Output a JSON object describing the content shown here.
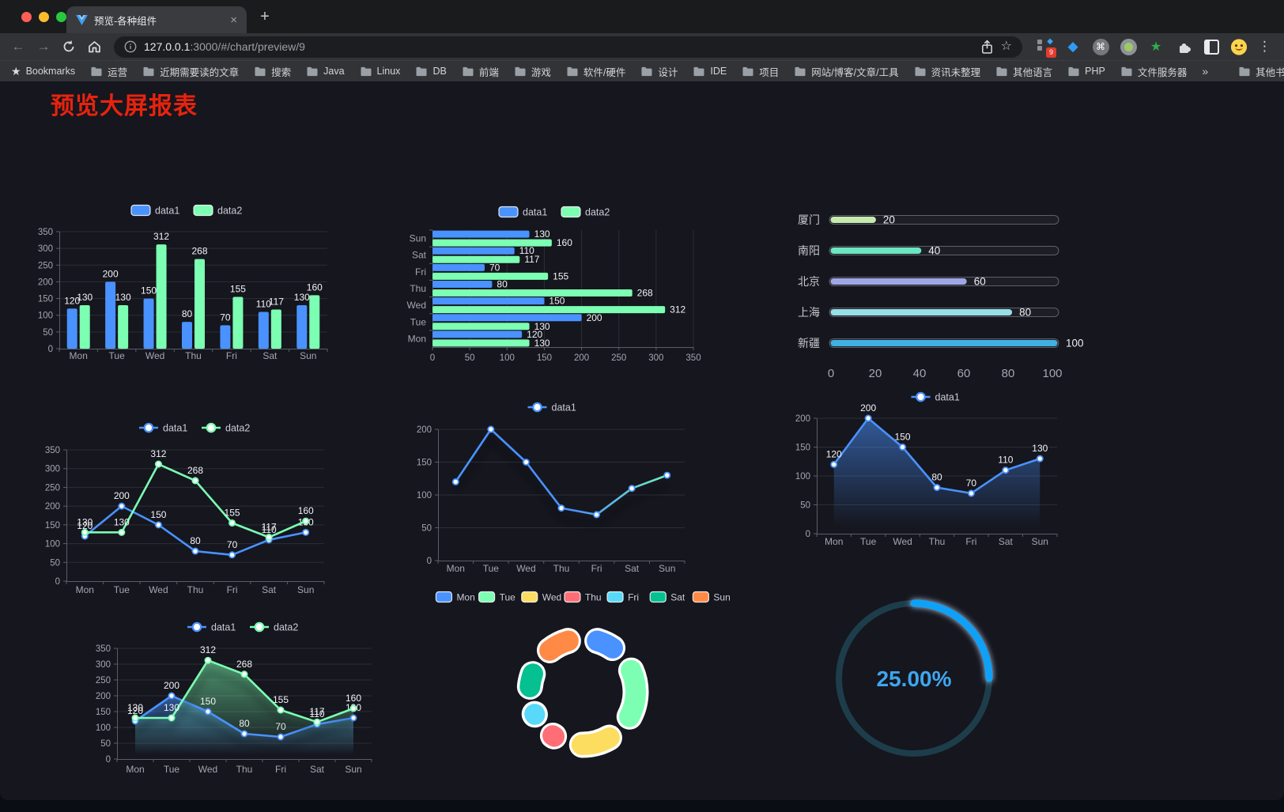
{
  "browser": {
    "tab_title": "预览-各种组件",
    "tab_close_glyph": "×",
    "new_tab_glyph": "+",
    "url": {
      "host": "127.0.0.1",
      "rest": ":3000/#/chart/preview/9"
    },
    "icons": {
      "back": "←",
      "forward": "→",
      "menu": "⋮",
      "overflow": "»",
      "star_outline": "☆",
      "bookmarks_star": "★",
      "gem": "◆",
      "command": "⌘",
      "green_star": "★"
    },
    "extension_badge": "9",
    "bookmarks_label": "Bookmarks",
    "bookmarks": [
      "运营",
      "近期需要读的文章",
      "搜索",
      "Java",
      "Linux",
      "DB",
      "前端",
      "游戏",
      "软件/硬件",
      "设计",
      "IDE",
      "项目",
      "网站/博客/文章/工具",
      "资讯未整理",
      "其他语言",
      "PHP",
      "文件服务器"
    ],
    "other_bookmarks": "其他书签"
  },
  "page": {
    "title": "预览大屏报表"
  },
  "chart_data": [
    {
      "id": "bar-vertical",
      "type": "bar",
      "title": "",
      "categories": [
        "Mon",
        "Tue",
        "Wed",
        "Thu",
        "Fri",
        "Sat",
        "Sun"
      ],
      "series": [
        {
          "name": "data1",
          "color": "#4992ff",
          "values": [
            120,
            200,
            150,
            80,
            70,
            110,
            130
          ]
        },
        {
          "name": "data2",
          "color": "#7cffb2",
          "values": [
            130,
            130,
            312,
            268,
            155,
            117,
            160
          ]
        }
      ],
      "ylim": [
        0,
        350
      ],
      "legend_position": "top",
      "grid": true,
      "value_labels": true
    },
    {
      "id": "bar-horizontal",
      "type": "bar",
      "orientation": "horizontal",
      "categories": [
        "Mon",
        "Tue",
        "Wed",
        "Thu",
        "Fri",
        "Sat",
        "Sun"
      ],
      "category_display_order": "Sun at top, Mon at bottom",
      "series": [
        {
          "name": "data1",
          "color": "#4992ff",
          "values": [
            120,
            200,
            150,
            80,
            70,
            110,
            130
          ]
        },
        {
          "name": "data2",
          "color": "#7cffb2",
          "values": [
            130,
            130,
            312,
            268,
            155,
            117,
            160
          ]
        }
      ],
      "xlim": [
        0,
        350
      ],
      "legend_position": "top",
      "grid": true,
      "value_labels": true
    },
    {
      "id": "city-progress",
      "type": "bar",
      "subtype": "progress",
      "categories": [
        "厦门",
        "南阳",
        "北京",
        "上海",
        "新疆"
      ],
      "values": [
        20,
        40,
        60,
        80,
        100
      ],
      "colors": [
        "#c4ebad",
        "#6be6c1",
        "#a0a7e6",
        "#96dee8",
        "#3fb1e3"
      ],
      "xlim": [
        0,
        100
      ],
      "xticks": [
        0,
        20,
        40,
        60,
        80,
        100
      ],
      "value_labels": true
    },
    {
      "id": "line-multi",
      "type": "line",
      "categories": [
        "Mon",
        "Tue",
        "Wed",
        "Thu",
        "Fri",
        "Sat",
        "Sun"
      ],
      "series": [
        {
          "name": "data1",
          "color": "#4992ff",
          "values": [
            120,
            200,
            150,
            80,
            70,
            110,
            130
          ]
        },
        {
          "name": "data2",
          "color": "#7cffb2",
          "values": [
            130,
            130,
            312,
            268,
            155,
            117,
            160
          ]
        }
      ],
      "ylim": [
        0,
        350
      ],
      "legend_position": "top",
      "grid": true,
      "value_labels": true
    },
    {
      "id": "line-gradient",
      "type": "line",
      "categories": [
        "Mon",
        "Tue",
        "Wed",
        "Thu",
        "Fri",
        "Sat",
        "Sun"
      ],
      "series": [
        {
          "name": "data1",
          "color": "#4992ff",
          "color_end": "#7cffb2",
          "values": [
            120,
            200,
            150,
            80,
            70,
            110,
            130
          ]
        }
      ],
      "ylim": [
        0,
        200
      ],
      "legend_position": "top",
      "grid": true,
      "value_labels": false,
      "shadow": true
    },
    {
      "id": "area-single",
      "type": "area",
      "categories": [
        "Mon",
        "Tue",
        "Wed",
        "Thu",
        "Fri",
        "Sat",
        "Sun"
      ],
      "series": [
        {
          "name": "data1",
          "color": "#4992ff",
          "values": [
            120,
            200,
            150,
            80,
            70,
            110,
            130
          ]
        }
      ],
      "ylim": [
        0,
        200
      ],
      "legend_position": "top",
      "grid": true,
      "value_labels": true
    },
    {
      "id": "area-multi",
      "type": "area",
      "categories": [
        "Mon",
        "Tue",
        "Wed",
        "Thu",
        "Fri",
        "Sat",
        "Sun"
      ],
      "series": [
        {
          "name": "data1",
          "color": "#4992ff",
          "values": [
            120,
            200,
            150,
            80,
            70,
            110,
            130
          ]
        },
        {
          "name": "data2",
          "color": "#7cffb2",
          "values": [
            130,
            130,
            312,
            268,
            155,
            117,
            160
          ]
        }
      ],
      "ylim": [
        0,
        350
      ],
      "legend_position": "top",
      "grid": true,
      "value_labels": true,
      "shadow": true
    },
    {
      "id": "donut",
      "type": "pie",
      "categories": [
        "Mon",
        "Tue",
        "Wed",
        "Thu",
        "Fri",
        "Sat",
        "Sun"
      ],
      "values": [
        120,
        200,
        150,
        80,
        70,
        110,
        130
      ],
      "colors": [
        "#4992ff",
        "#7cffb2",
        "#fddd60",
        "#ff6e76",
        "#58d9f9",
        "#05c091",
        "#ff8a45"
      ],
      "legend_position": "top",
      "inner_radius": true,
      "border_color": "#ffffff"
    },
    {
      "id": "gauge",
      "type": "gauge",
      "value": 25,
      "max": 100,
      "label": "25.00%",
      "color": "#0aa1f7",
      "track_color": "#1d3d4b",
      "text_color": "#3fa5ee"
    }
  ]
}
